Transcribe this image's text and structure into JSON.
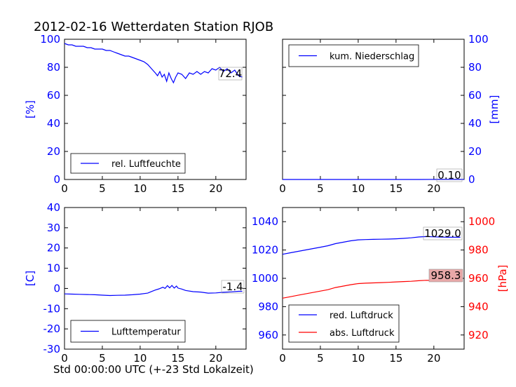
{
  "figure_title": "2012-02-16 Wetterdaten Station RJOB",
  "bottom_caption": "Std 00:00:00 UTC (+-23 Std Lokalzeit)",
  "colors": {
    "blue": "#0000ff",
    "red": "#ff0000",
    "axis": "#000000",
    "annot_red_bg": "#e8a8a8"
  },
  "chart_data": [
    {
      "type": "line",
      "id": "humidity",
      "ylabel": "[%]",
      "xlim": [
        0,
        24
      ],
      "ylim": [
        0,
        100
      ],
      "xticks": [
        0,
        5,
        10,
        15,
        20
      ],
      "yticks": [
        0,
        20,
        40,
        60,
        80,
        100
      ],
      "legend": "bottom-left",
      "annotation": "72.4",
      "series": [
        {
          "name": "rel. Luftfeuchte",
          "color": "#0000ff",
          "x": [
            0,
            0.5,
            1,
            1.5,
            2,
            2.5,
            3,
            3.5,
            4,
            4.5,
            5,
            5.5,
            6,
            6.5,
            7,
            7.5,
            8,
            8.5,
            9,
            9.5,
            10,
            10.5,
            11,
            11.5,
            12,
            12.3,
            12.6,
            12.9,
            13.2,
            13.5,
            13.8,
            14.1,
            14.4,
            14.7,
            15,
            15.5,
            16,
            16.5,
            17,
            17.5,
            18,
            18.5,
            19,
            19.5,
            20,
            20.5,
            21,
            21.5,
            22,
            22.5,
            23,
            23.5
          ],
          "y": [
            97,
            96,
            96,
            95,
            95,
            95,
            94,
            94,
            93,
            93,
            93,
            92,
            92,
            91,
            90,
            89,
            88,
            88,
            87,
            86,
            85,
            84,
            82,
            79,
            76,
            74,
            77,
            73,
            75,
            70,
            76,
            72,
            69,
            73,
            76,
            75,
            72,
            76,
            75,
            77,
            75,
            77,
            76,
            79,
            78,
            80,
            77,
            79,
            76,
            78,
            74,
            73
          ]
        }
      ]
    },
    {
      "type": "line",
      "id": "precipitation",
      "ylabel": "[mm]",
      "xlim": [
        0,
        24
      ],
      "ylim": [
        0,
        100
      ],
      "xticks": [
        0,
        5,
        10,
        15,
        20
      ],
      "yticks": [
        0,
        20,
        40,
        60,
        80,
        100
      ],
      "legend": "top-left",
      "annotation": "0.10",
      "series": [
        {
          "name": "kum. Niederschlag",
          "color": "#0000ff",
          "x": [
            0,
            6,
            12,
            18,
            21,
            24
          ],
          "y": [
            0,
            0,
            0,
            0,
            0.1,
            0.1
          ]
        }
      ]
    },
    {
      "type": "line",
      "id": "temperature",
      "ylabel": "[C]",
      "xlim": [
        0,
        24
      ],
      "ylim": [
        -30,
        40
      ],
      "xticks": [
        0,
        5,
        10,
        15,
        20
      ],
      "yticks": [
        -30,
        -20,
        -10,
        0,
        10,
        20,
        30,
        40
      ],
      "legend": "bottom-left",
      "annotation": "-1.4",
      "series": [
        {
          "name": "Lufttemperatur",
          "color": "#0000ff",
          "x": [
            0,
            1,
            2,
            3,
            4,
            5,
            6,
            7,
            8,
            9,
            10,
            11,
            11.5,
            12,
            12.5,
            13,
            13.3,
            13.6,
            13.9,
            14.2,
            14.5,
            14.8,
            15,
            15.5,
            16,
            17,
            18,
            19,
            20,
            21,
            22,
            23,
            23.5
          ],
          "y": [
            -2.7,
            -2.8,
            -2.9,
            -3.0,
            -3.1,
            -3.3,
            -3.5,
            -3.4,
            -3.3,
            -3.1,
            -2.8,
            -2.3,
            -1.5,
            -0.8,
            -0.2,
            0.6,
            0.0,
            1.4,
            0.3,
            1.5,
            0.2,
            1.2,
            0.2,
            -0.3,
            -1.0,
            -1.6,
            -1.8,
            -2.3,
            -2.2,
            -1.9,
            -1.7,
            -1.4,
            -1.4
          ]
        }
      ]
    },
    {
      "type": "line",
      "id": "pressure",
      "ylabel": "[hPa]",
      "xlim": [
        0,
        24
      ],
      "ylim_left": [
        950,
        1050
      ],
      "ylim_right": [
        910,
        1010
      ],
      "xticks": [
        0,
        5,
        10,
        15,
        20
      ],
      "yticks_left": [
        960,
        980,
        1000,
        1020,
        1040
      ],
      "yticks_right": [
        920,
        940,
        960,
        980,
        1000
      ],
      "legend": "bottom-left",
      "annotations": [
        "1029.0",
        "958.3"
      ],
      "series": [
        {
          "name": "red. Luftdruck",
          "color": "#0000ff",
          "axis": "left",
          "x": [
            0,
            1,
            2,
            3,
            4,
            5,
            6,
            7,
            8,
            9,
            10,
            11,
            12,
            13,
            14,
            15,
            16,
            17,
            18,
            19,
            20,
            21,
            22,
            23,
            23.5
          ],
          "y": [
            1017,
            1018,
            1019,
            1020,
            1021,
            1022,
            1023,
            1024.5,
            1025.5,
            1026.5,
            1027.2,
            1027.4,
            1027.5,
            1027.6,
            1027.7,
            1027.9,
            1028.2,
            1028.6,
            1029.2,
            1029.5,
            1029.3,
            1029.1,
            1029.0,
            1029.0,
            1029.0
          ]
        },
        {
          "name": "abs. Luftdruck",
          "color": "#ff0000",
          "axis": "right",
          "x": [
            0,
            1,
            2,
            3,
            4,
            5,
            6,
            7,
            8,
            9,
            10,
            11,
            12,
            13,
            14,
            15,
            16,
            17,
            18,
            19,
            20,
            21,
            22,
            23,
            23.5
          ],
          "y": [
            946,
            947,
            948,
            949,
            950,
            951,
            952,
            953.5,
            954.5,
            955.5,
            956.3,
            956.6,
            956.8,
            957.0,
            957.2,
            957.5,
            957.7,
            957.9,
            958.3,
            958.6,
            958.5,
            958.4,
            958.3,
            958.3,
            958.3
          ]
        }
      ]
    }
  ]
}
